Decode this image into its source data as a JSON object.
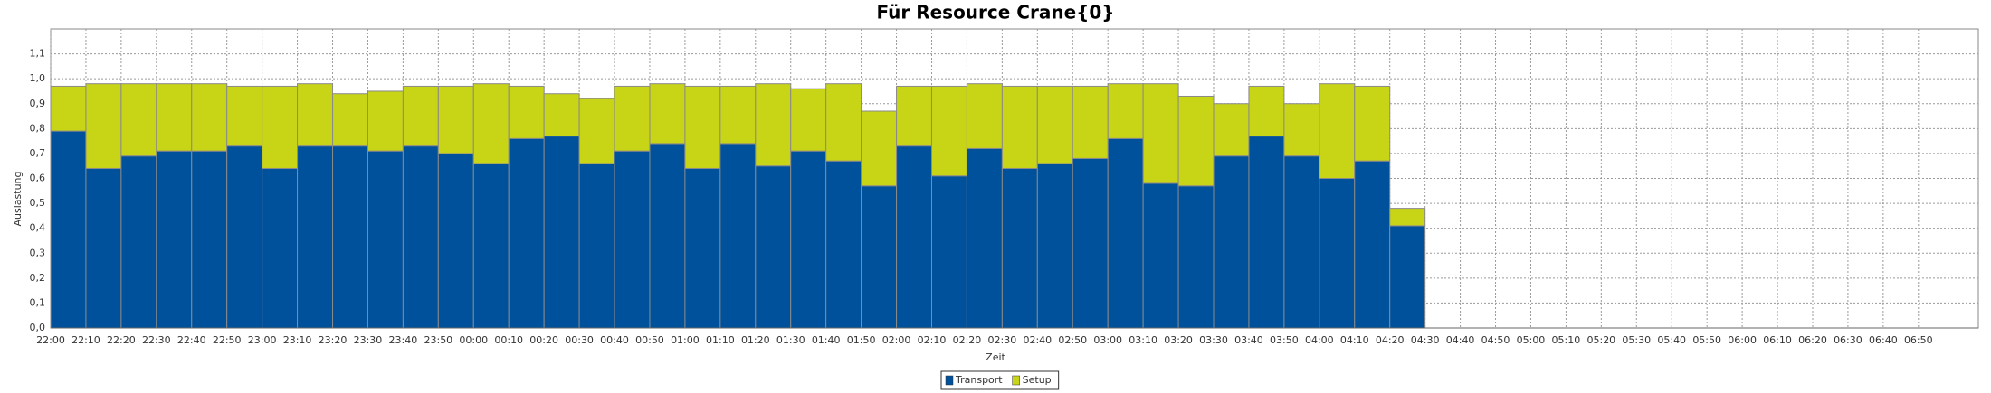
{
  "chart_data": {
    "type": "stacked_bar",
    "title": "Für Resource Crane{0}",
    "x_label": "Zeit",
    "y_label": "Auslastung",
    "categories": [
      "22:00",
      "22:10",
      "22:20",
      "22:30",
      "22:40",
      "22:50",
      "23:00",
      "23:10",
      "23:20",
      "23:30",
      "23:40",
      "23:50",
      "00:00",
      "00:10",
      "00:20",
      "00:30",
      "00:40",
      "00:50",
      "01:00",
      "01:10",
      "01:20",
      "01:30",
      "01:40",
      "01:50",
      "02:00",
      "02:10",
      "02:20",
      "02:30",
      "02:40",
      "02:50",
      "03:00",
      "03:10",
      "03:20",
      "03:30",
      "03:40",
      "03:50",
      "04:00",
      "04:10",
      "04:20",
      "04:30",
      "04:40",
      "04:50",
      "05:00",
      "05:10",
      "05:20",
      "05:30",
      "05:40",
      "05:50",
      "06:00",
      "06:10",
      "06:20",
      "06:30",
      "06:40",
      "06:50"
    ],
    "series": [
      {
        "name": "Transport",
        "color": "#00519c",
        "values": [
          0.79,
          0.64,
          0.69,
          0.71,
          0.71,
          0.73,
          0.64,
          0.73,
          0.73,
          0.71,
          0.73,
          0.7,
          0.66,
          0.76,
          0.77,
          0.66,
          0.71,
          0.74,
          0.64,
          0.74,
          0.65,
          0.71,
          0.67,
          0.57,
          0.73,
          0.61,
          0.72,
          0.64,
          0.66,
          0.68,
          0.76,
          0.58,
          0.57,
          0.69,
          0.77,
          0.69,
          0.6,
          0.67,
          0.41,
          null,
          null,
          null,
          null,
          null,
          null,
          null,
          null,
          null,
          null,
          null,
          null,
          null,
          null,
          null
        ]
      },
      {
        "name": "Setup",
        "color": "#c8d416",
        "values": [
          0.18,
          0.34,
          0.29,
          0.27,
          0.27,
          0.24,
          0.33,
          0.25,
          0.21,
          0.24,
          0.24,
          0.27,
          0.32,
          0.21,
          0.17,
          0.26,
          0.26,
          0.24,
          0.33,
          0.23,
          0.33,
          0.25,
          0.31,
          0.3,
          0.24,
          0.36,
          0.26,
          0.33,
          0.31,
          0.29,
          0.22,
          0.4,
          0.36,
          0.21,
          0.2,
          0.21,
          0.38,
          0.3,
          0.07,
          null,
          null,
          null,
          null,
          null,
          null,
          null,
          null,
          null,
          null,
          null,
          null,
          null,
          null,
          null
        ]
      }
    ],
    "ylim": [
      0,
      1.2
    ],
    "yticks": [
      {
        "value": 0,
        "label": "0,0"
      },
      {
        "value": 0.1,
        "label": "0,1"
      },
      {
        "value": 0.2,
        "label": "0,2"
      },
      {
        "value": 0.3,
        "label": "0,3"
      },
      {
        "value": 0.4,
        "label": "0,4"
      },
      {
        "value": 0.5,
        "label": "0,5"
      },
      {
        "value": 0.6,
        "label": "0,6"
      },
      {
        "value": 0.7,
        "label": "0,7"
      },
      {
        "value": 0.8,
        "label": "0,8"
      },
      {
        "value": 0.9,
        "label": "0,9"
      },
      {
        "value": 1.0,
        "label": "1,0"
      },
      {
        "value": 1.1,
        "label": "1,1"
      }
    ],
    "grid": true,
    "legend": "bottom"
  }
}
